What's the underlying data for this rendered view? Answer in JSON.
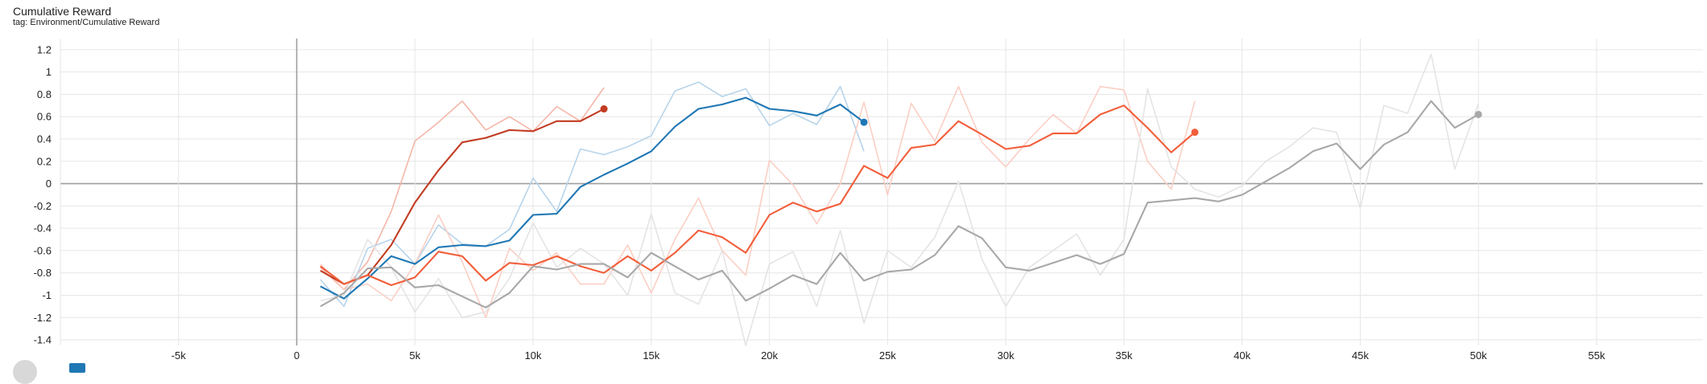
{
  "header": {
    "title": "Cumulative Reward",
    "subtitle": "tag: Environment/Cumulative Reward"
  },
  "colors": {
    "grid": "#e6e6e6",
    "zero_line": "#9e9e9e",
    "tick_text": "#212121"
  },
  "chart_data": {
    "type": "line",
    "title": "Cumulative Reward",
    "subtitle": "tag: Environment/Cumulative Reward",
    "xlim": [
      -10000,
      59500
    ],
    "ylim": [
      -1.45,
      1.3
    ],
    "xticks": [
      -5000,
      0,
      5000,
      10000,
      15000,
      20000,
      25000,
      30000,
      35000,
      40000,
      45000,
      50000,
      55000
    ],
    "xtick_labels": [
      "-5k",
      "0",
      "5k",
      "10k",
      "15k",
      "20k",
      "25k",
      "30k",
      "35k",
      "40k",
      "45k",
      "50k",
      "55k"
    ],
    "yticks": [
      -1.4,
      -1.2,
      -1,
      -0.8,
      -0.6,
      -0.4,
      -0.2,
      0,
      0.2,
      0.4,
      0.6,
      0.8,
      1,
      1.2
    ],
    "ytick_labels": [
      "-1.4",
      "-1.2",
      "-1",
      "-0.8",
      "-0.6",
      "-0.4",
      "-0.2",
      "0",
      "0.2",
      "0.4",
      "0.6",
      "0.8",
      "1",
      "1.2"
    ],
    "grid": true,
    "series": [
      {
        "color": "#c23b22",
        "raw_color": "#f4b6a8",
        "end_marker": true,
        "raw": {
          "x": [
            1000,
            2000,
            3000,
            4000,
            5000,
            6000,
            7000,
            8000,
            9000,
            10000,
            11000,
            12000,
            13000
          ],
          "y": [
            -0.75,
            -0.95,
            -0.7,
            -0.25,
            0.38,
            0.55,
            0.74,
            0.48,
            0.6,
            0.47,
            0.69,
            0.56,
            0.86
          ]
        },
        "smoothed": {
          "x": [
            1000,
            2000,
            3000,
            4000,
            5000,
            6000,
            7000,
            8000,
            9000,
            10000,
            11000,
            12000,
            13000
          ],
          "y": [
            -0.78,
            -0.9,
            -0.82,
            -0.55,
            -0.17,
            0.12,
            0.37,
            0.41,
            0.48,
            0.47,
            0.56,
            0.56,
            0.67
          ]
        }
      },
      {
        "color": "#1f77b4",
        "raw_color": "#b7d4ea",
        "end_marker": true,
        "raw": {
          "x": [
            1000,
            2000,
            3000,
            4000,
            5000,
            6000,
            7000,
            8000,
            9000,
            10000,
            11000,
            12000,
            13000,
            14000,
            15000,
            16000,
            17000,
            18000,
            19000,
            20000,
            21000,
            22000,
            23000,
            24000
          ],
          "y": [
            -0.86,
            -1.1,
            -0.58,
            -0.5,
            -0.72,
            -0.37,
            -0.54,
            -0.56,
            -0.41,
            0.05,
            -0.25,
            0.31,
            0.26,
            0.33,
            0.43,
            0.83,
            0.91,
            0.78,
            0.85,
            0.52,
            0.63,
            0.53,
            0.87,
            0.29
          ]
        },
        "smoothed": {
          "x": [
            1000,
            2000,
            3000,
            4000,
            5000,
            6000,
            7000,
            8000,
            9000,
            10000,
            11000,
            12000,
            13000,
            14000,
            15000,
            16000,
            17000,
            18000,
            19000,
            20000,
            21000,
            22000,
            23000,
            24000
          ],
          "y": [
            -0.92,
            -1.03,
            -0.85,
            -0.65,
            -0.72,
            -0.57,
            -0.55,
            -0.56,
            -0.51,
            -0.28,
            -0.27,
            -0.03,
            0.08,
            0.18,
            0.29,
            0.51,
            0.67,
            0.71,
            0.77,
            0.67,
            0.65,
            0.61,
            0.71,
            0.55
          ]
        }
      },
      {
        "color": "#f25e3a",
        "raw_color": "#fbcfc4",
        "end_marker": true,
        "raw": {
          "x": [
            1000,
            2000,
            3000,
            4000,
            5000,
            6000,
            7000,
            8000,
            9000,
            10000,
            11000,
            12000,
            13000,
            14000,
            15000,
            16000,
            17000,
            18000,
            19000,
            20000,
            21000,
            22000,
            23000,
            24000,
            25000,
            26000,
            27000,
            28000,
            29000,
            30000,
            31000,
            32000,
            33000,
            34000,
            35000,
            36000,
            37000,
            38000
          ],
          "y": [
            -0.72,
            -0.95,
            -0.9,
            -1.05,
            -0.72,
            -0.28,
            -0.7,
            -1.2,
            -0.58,
            -0.78,
            -0.62,
            -0.9,
            -0.9,
            -0.55,
            -0.98,
            -0.5,
            -0.13,
            -0.6,
            -0.82,
            0.21,
            -0.01,
            -0.36,
            0.0,
            0.73,
            -0.1,
            0.72,
            0.38,
            0.87,
            0.37,
            0.15,
            0.4,
            0.62,
            0.45,
            0.87,
            0.84,
            0.2,
            -0.05,
            0.74
          ]
        },
        "smoothed": {
          "x": [
            1000,
            2000,
            3000,
            4000,
            5000,
            6000,
            7000,
            8000,
            9000,
            10000,
            11000,
            12000,
            13000,
            14000,
            15000,
            16000,
            17000,
            18000,
            19000,
            20000,
            21000,
            22000,
            23000,
            24000,
            25000,
            26000,
            27000,
            28000,
            29000,
            30000,
            31000,
            32000,
            33000,
            34000,
            35000,
            36000,
            37000,
            38000
          ],
          "y": [
            -0.74,
            -0.9,
            -0.82,
            -0.91,
            -0.84,
            -0.61,
            -0.65,
            -0.87,
            -0.71,
            -0.73,
            -0.65,
            -0.74,
            -0.8,
            -0.65,
            -0.78,
            -0.62,
            -0.42,
            -0.48,
            -0.62,
            -0.28,
            -0.17,
            -0.25,
            -0.18,
            0.16,
            0.05,
            0.32,
            0.35,
            0.56,
            0.44,
            0.31,
            0.34,
            0.45,
            0.45,
            0.62,
            0.7,
            0.5,
            0.28,
            0.46
          ]
        }
      },
      {
        "color": "#a8a8a8",
        "raw_color": "#e4e4e4",
        "end_marker": true,
        "raw": {
          "x": [
            1000,
            2000,
            3000,
            4000,
            5000,
            6000,
            7000,
            8000,
            9000,
            10000,
            11000,
            12000,
            13000,
            14000,
            15000,
            16000,
            17000,
            18000,
            19000,
            20000,
            21000,
            22000,
            23000,
            24000,
            25000,
            26000,
            27000,
            28000,
            29000,
            30000,
            31000,
            32000,
            33000,
            34000,
            35000,
            36000,
            37000,
            38000,
            39000,
            40000,
            41000,
            42000,
            43000,
            44000,
            45000,
            46000,
            47000,
            48000,
            49000,
            50000
          ],
          "y": [
            -1.05,
            -1.0,
            -0.5,
            -0.75,
            -1.15,
            -0.85,
            -1.2,
            -1.15,
            -0.85,
            -0.35,
            -0.75,
            -0.58,
            -0.72,
            -1.0,
            -0.27,
            -0.98,
            -1.08,
            -0.6,
            -1.45,
            -0.72,
            -0.61,
            -1.1,
            -0.42,
            -1.25,
            -0.6,
            -0.75,
            -0.48,
            0.02,
            -0.68,
            -1.1,
            -0.75,
            -0.6,
            -0.45,
            -0.82,
            -0.5,
            0.85,
            0.15,
            -0.05,
            -0.12,
            -0.02,
            0.2,
            0.33,
            0.5,
            0.46,
            -0.22,
            0.7,
            0.63,
            1.16,
            0.13,
            0.72
          ]
        },
        "smoothed": {
          "x": [
            1000,
            2000,
            3000,
            4000,
            5000,
            6000,
            7000,
            8000,
            9000,
            10000,
            11000,
            12000,
            13000,
            14000,
            15000,
            16000,
            17000,
            18000,
            19000,
            20000,
            21000,
            22000,
            23000,
            24000,
            25000,
            26000,
            27000,
            28000,
            29000,
            30000,
            31000,
            32000,
            33000,
            34000,
            35000,
            36000,
            37000,
            38000,
            39000,
            40000,
            41000,
            42000,
            43000,
            44000,
            45000,
            46000,
            47000,
            48000,
            49000,
            50000
          ],
          "y": [
            -1.1,
            -0.98,
            -0.76,
            -0.75,
            -0.93,
            -0.91,
            -1.01,
            -1.11,
            -0.98,
            -0.74,
            -0.77,
            -0.72,
            -0.72,
            -0.84,
            -0.62,
            -0.74,
            -0.86,
            -0.78,
            -1.05,
            -0.94,
            -0.82,
            -0.9,
            -0.62,
            -0.87,
            -0.79,
            -0.77,
            -0.64,
            -0.38,
            -0.49,
            -0.75,
            -0.78,
            -0.71,
            -0.64,
            -0.72,
            -0.63,
            -0.17,
            -0.15,
            -0.13,
            -0.16,
            -0.1,
            0.02,
            0.14,
            0.29,
            0.36,
            0.13,
            0.35,
            0.46,
            0.74,
            0.5,
            0.62
          ]
        }
      }
    ]
  }
}
